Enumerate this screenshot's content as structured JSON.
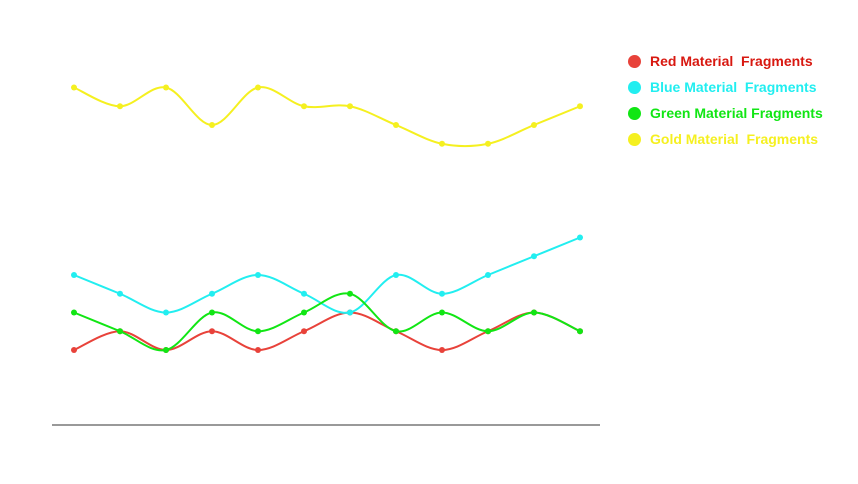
{
  "chart_data": {
    "type": "line",
    "x": [
      1,
      2,
      3,
      4,
      5,
      6,
      7,
      8,
      9,
      10,
      11,
      12
    ],
    "ylim": [
      0,
      20
    ],
    "grid": false,
    "legend_position": "right",
    "series": [
      {
        "name": "Red Material  Fragments",
        "color": "#e8423a",
        "values": [
          4,
          5,
          4,
          5,
          4,
          5,
          6,
          5,
          4,
          5,
          6,
          5
        ]
      },
      {
        "name": "Blue Material  Fragments",
        "color": "#22eef0",
        "values": [
          8,
          7,
          6,
          7,
          8,
          7,
          6,
          8,
          7,
          8,
          9,
          10
        ]
      },
      {
        "name": "Green Material Fragments",
        "color": "#11e614",
        "values": [
          6,
          5,
          4,
          6,
          5,
          6,
          7,
          5,
          6,
          5,
          6,
          5
        ]
      },
      {
        "name": "Gold Material  Fragments",
        "color": "#f5f020",
        "values": [
          18,
          17,
          18,
          16,
          18,
          17,
          17,
          16,
          15,
          15,
          16,
          17
        ]
      }
    ]
  }
}
